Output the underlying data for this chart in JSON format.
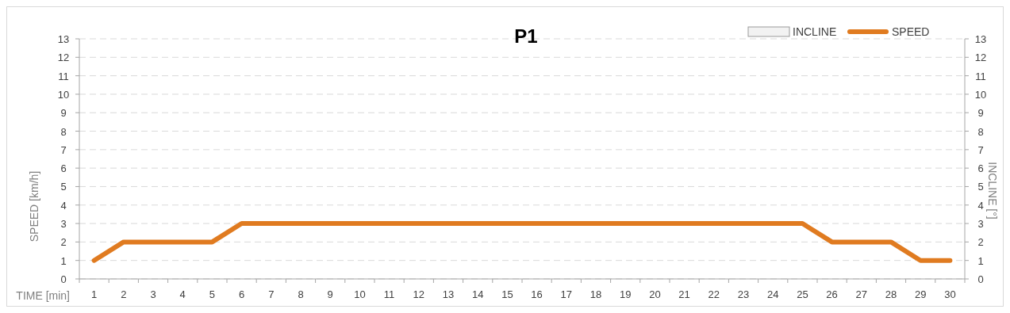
{
  "chart_data": {
    "type": "line",
    "title": "P1",
    "xlabel": "TIME [min]",
    "ylabel": "SPEED [km/h]",
    "y2label": "INCLINE [°]",
    "categories": [
      "1",
      "2",
      "3",
      "4",
      "5",
      "6",
      "7",
      "8",
      "9",
      "10",
      "11",
      "12",
      "13",
      "14",
      "15",
      "16",
      "17",
      "18",
      "19",
      "20",
      "21",
      "22",
      "23",
      "24",
      "25",
      "26",
      "27",
      "28",
      "29",
      "30"
    ],
    "series": [
      {
        "name": "INCLINE",
        "type": "bar",
        "color": "#f2f2f2",
        "values": [
          null,
          null,
          null,
          null,
          null,
          null,
          null,
          null,
          null,
          null,
          null,
          null,
          null,
          null,
          null,
          null,
          null,
          null,
          null,
          null,
          null,
          null,
          null,
          null,
          null,
          null,
          null,
          null,
          null,
          null
        ]
      },
      {
        "name": "SPEED",
        "color": "#e07b20",
        "values": [
          1,
          2,
          2,
          2,
          2,
          3,
          3,
          3,
          3,
          3,
          3,
          3,
          3,
          3,
          3,
          3,
          3,
          3,
          3,
          3,
          3,
          3,
          3,
          3,
          3,
          2,
          2,
          2,
          1,
          1
        ]
      }
    ],
    "ylim": [
      0,
      13
    ],
    "yticks": [
      0,
      1,
      2,
      3,
      4,
      5,
      6,
      7,
      8,
      9,
      10,
      11,
      12,
      13
    ],
    "y2lim": [
      0,
      13
    ],
    "y2ticks": [
      0,
      1,
      2,
      3,
      4,
      5,
      6,
      7,
      8,
      9,
      10,
      11,
      12,
      13
    ],
    "grid": "y",
    "legend": "top right",
    "line_style": "solid",
    "marker": "none"
  }
}
